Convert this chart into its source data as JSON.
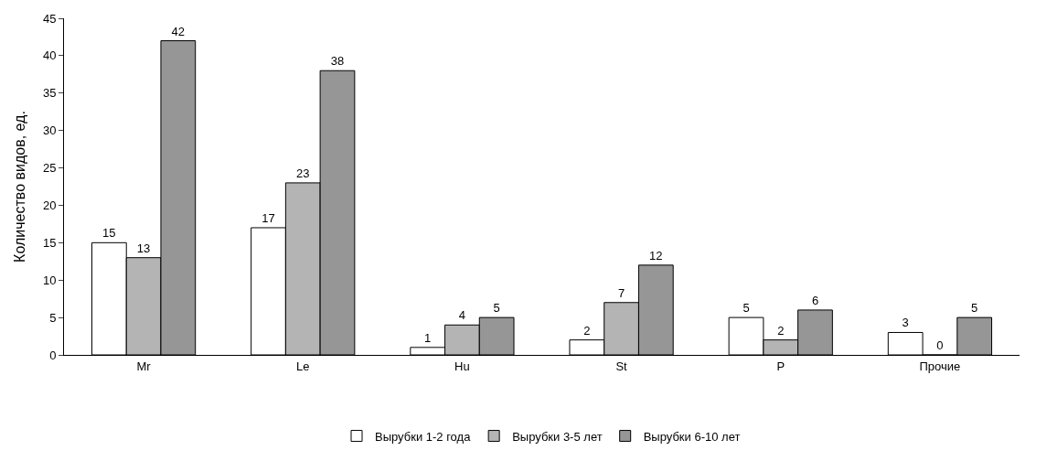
{
  "chart_data": {
    "type": "bar",
    "ylabel": "Количество видов, ед.",
    "categories": [
      "Mr",
      "Le",
      "Hu",
      "St",
      "P",
      "Прочие"
    ],
    "series": [
      {
        "name": "Вырубки 1-2 года",
        "color": "#ffffff",
        "values": [
          15,
          17,
          1,
          2,
          5,
          3
        ]
      },
      {
        "name": "Вырубки 3-5 лет",
        "color": "#b4b4b4",
        "values": [
          13,
          23,
          4,
          7,
          2,
          0
        ]
      },
      {
        "name": "Вырубки 6-10 лет",
        "color": "#969696",
        "values": [
          42,
          38,
          5,
          12,
          6,
          5
        ]
      }
    ],
    "ylim": [
      0,
      45
    ],
    "yticks": [
      0,
      5,
      10,
      15,
      20,
      25,
      30,
      35,
      40,
      45
    ],
    "data_labels": true,
    "legend": "bottom"
  }
}
